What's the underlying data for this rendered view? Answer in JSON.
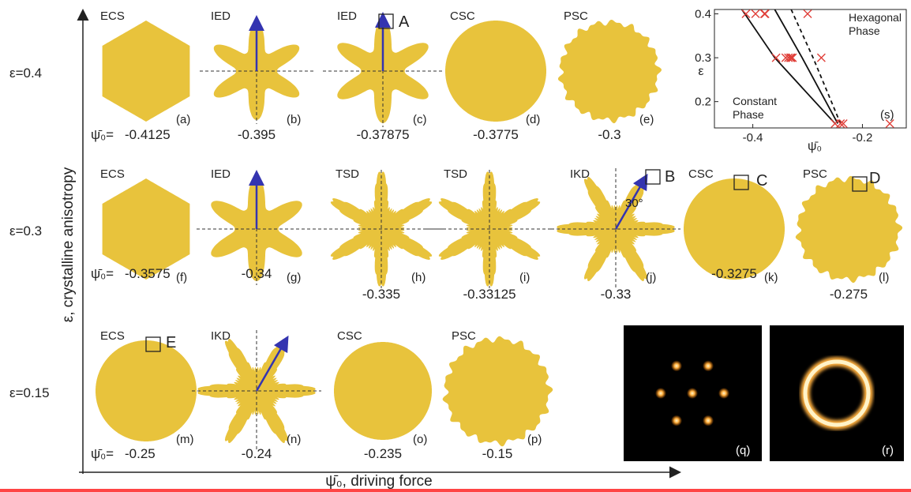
{
  "axes": {
    "y_label": "ε, crystalline anisotropy",
    "x_label": "ψ̄₀, driving force"
  },
  "value_prefix": "ψ̄₀=",
  "rows": [
    {
      "epsilon": "ε=0.4",
      "panels": [
        {
          "type": "ECS",
          "value": "-0.4125",
          "label": "(a)"
        },
        {
          "type": "IED",
          "value": "-0.395",
          "label": "(b)"
        },
        {
          "type": "IED",
          "value": "-0.37875",
          "label": "(c)",
          "marker": "A"
        },
        {
          "type": "CSC",
          "value": "-0.3775",
          "label": "(d)"
        },
        {
          "type": "PSC",
          "value": "-0.3",
          "label": "(e)"
        }
      ]
    },
    {
      "epsilon": "ε=0.3",
      "panels": [
        {
          "type": "ECS",
          "value": "-0.3575",
          "label": "(f)"
        },
        {
          "type": "IED",
          "value": "-0.34",
          "label": "(g)"
        },
        {
          "type": "TSD",
          "value": "-0.335",
          "label": "(h)"
        },
        {
          "type": "TSD",
          "value": "-0.33125",
          "label": "(i)"
        },
        {
          "type": "IKD",
          "value": "-0.33",
          "label": "(j)",
          "marker": "B",
          "angle": "30°"
        },
        {
          "type": "CSC",
          "value": "-0.3275",
          "label": "(k)",
          "marker": "C"
        },
        {
          "type": "PSC",
          "value": "-0.275",
          "label": "(l)",
          "marker": "D"
        }
      ]
    },
    {
      "epsilon": "ε=0.15",
      "panels": [
        {
          "type": "ECS",
          "value": "-0.25",
          "label": "(m)",
          "marker": "E"
        },
        {
          "type": "IKD",
          "value": "-0.24",
          "label": "(n)"
        },
        {
          "type": "CSC",
          "value": "-0.235",
          "label": "(o)"
        },
        {
          "type": "PSC",
          "value": "-0.15",
          "label": "(p)"
        }
      ]
    }
  ],
  "fft_panels": [
    {
      "label": "(q)"
    },
    {
      "label": "(r)"
    }
  ],
  "inset": {
    "label": "(s)",
    "x_label": "ψ̄₀",
    "y_label": "ε",
    "xlim": [
      -0.47,
      -0.12
    ],
    "ylim": [
      0.14,
      0.41
    ],
    "xticks": [
      -0.4,
      -0.2
    ],
    "yticks": [
      0.2,
      0.3,
      0.4
    ],
    "regions": [
      "Hexagonal Phase",
      "Constant Phase"
    ],
    "points": {
      "x": [
        -0.4125,
        -0.395,
        -0.37875,
        -0.3775,
        -0.3,
        -0.3575,
        -0.34,
        -0.335,
        -0.33125,
        -0.33,
        -0.3275,
        -0.275,
        -0.25,
        -0.24,
        -0.235,
        -0.15
      ],
      "y": [
        0.4,
        0.4,
        0.4,
        0.4,
        0.4,
        0.3,
        0.3,
        0.3,
        0.3,
        0.3,
        0.3,
        0.3,
        0.15,
        0.15,
        0.15,
        0.15
      ]
    },
    "boundaries": [
      {
        "x": [
          -0.42,
          -0.36,
          -0.25
        ],
        "y": [
          0.41,
          0.3,
          0.15
        ],
        "dashed": false
      },
      {
        "x": [
          -0.36,
          -0.31,
          -0.245
        ],
        "y": [
          0.41,
          0.3,
          0.15
        ],
        "dashed": false
      },
      {
        "x": [
          -0.33,
          -0.29,
          -0.24
        ],
        "y": [
          0.41,
          0.3,
          0.15
        ],
        "dashed": true
      }
    ]
  }
}
